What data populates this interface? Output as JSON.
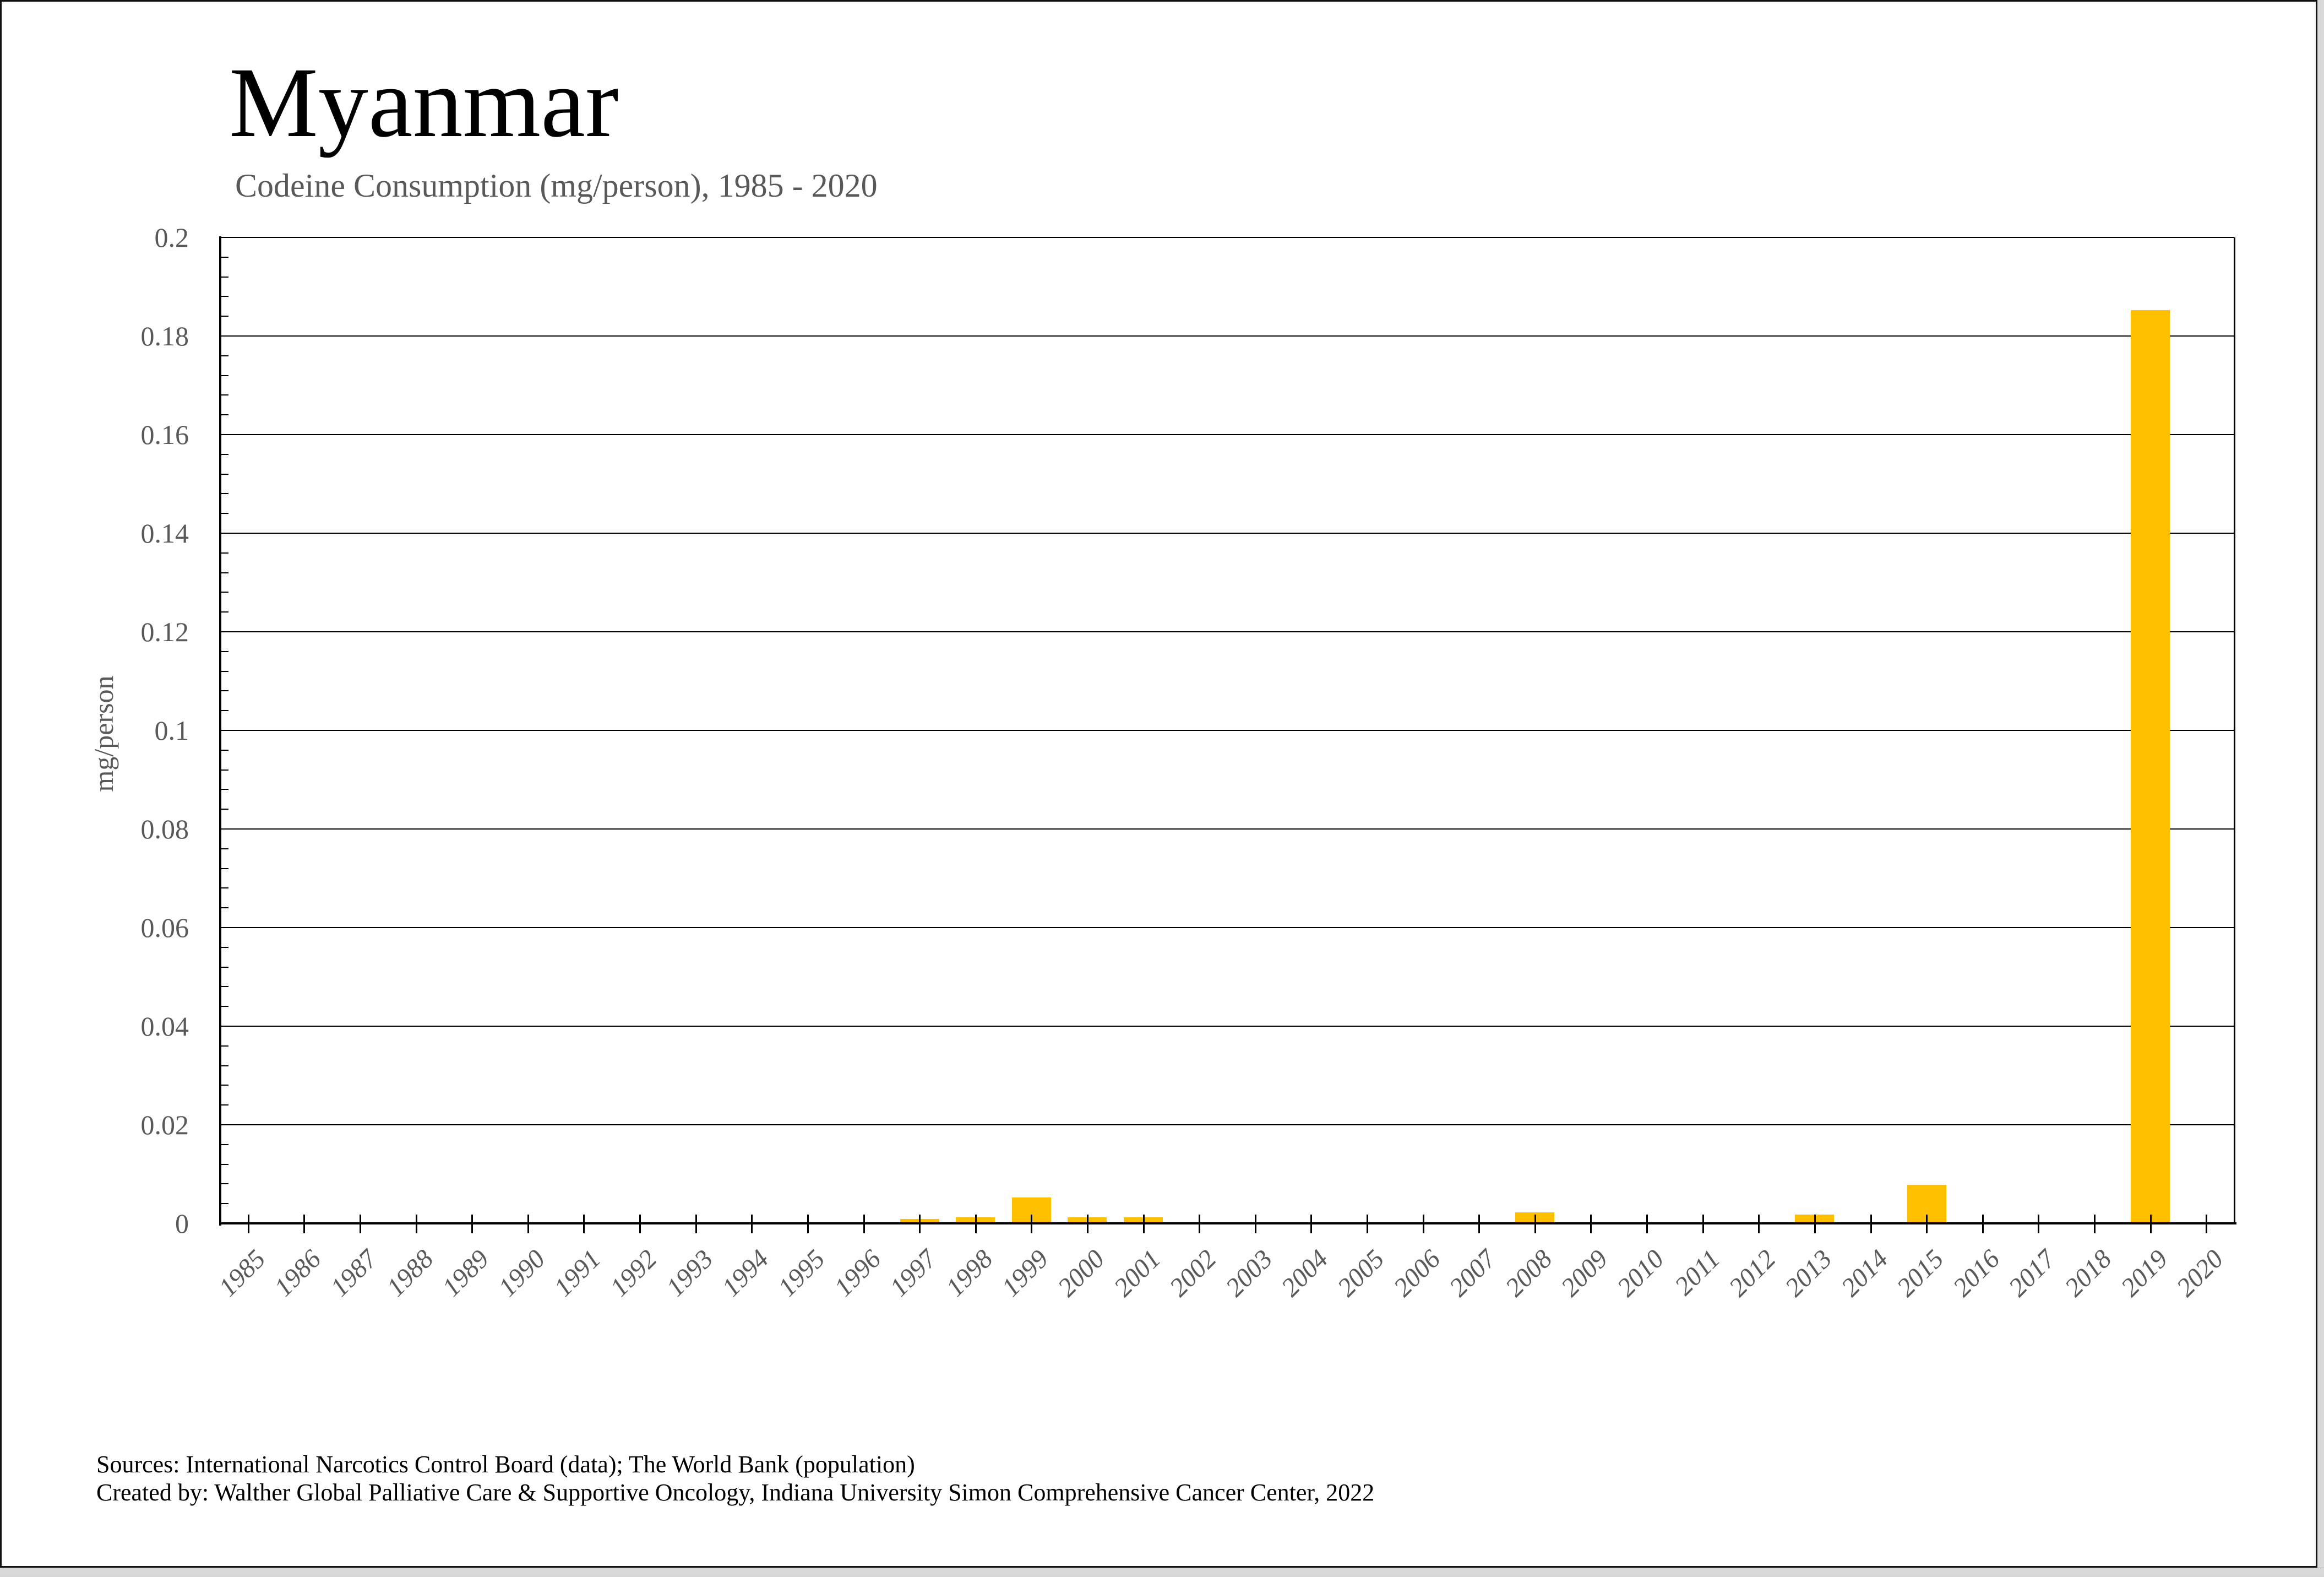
{
  "page": {
    "title": "Myanmar",
    "subtitle": "Codeine Consumption (mg/person), 1985 - 2020",
    "footer_line1": "Sources: International Narcotics Control Board (data); The World Bank (population)",
    "footer_line2": "Created by: Walther Global Palliative Care & Supportive Oncology, Indiana University Simon Comprehensive Cancer Center, 2022"
  },
  "colors": {
    "bar": "#FFC000",
    "axis": "#000000",
    "gridline": "#000000",
    "label_gray": "#595959",
    "title_black": "#000000",
    "page_background": "#ffffff",
    "window_edge_gray": "#d9d9d9"
  },
  "chart_data": {
    "type": "bar",
    "title": "Myanmar",
    "subtitle": "Codeine Consumption (mg/person), 1985 - 2020",
    "xlabel": "",
    "ylabel": "mg/person",
    "ylim": [
      0,
      0.2
    ],
    "y_major_step": 0.02,
    "y_minor_step": 0.004,
    "grid": "horizontal-major",
    "legend": "none",
    "bar_color": "#FFC000",
    "categories": [
      "1985",
      "1986",
      "1987",
      "1988",
      "1989",
      "1990",
      "1991",
      "1992",
      "1993",
      "1994",
      "1995",
      "1996",
      "1997",
      "1998",
      "1999",
      "2000",
      "2001",
      "2002",
      "2003",
      "2004",
      "2005",
      "2006",
      "2007",
      "2008",
      "2009",
      "2010",
      "2011",
      "2012",
      "2013",
      "2014",
      "2015",
      "2016",
      "2017",
      "2018",
      "2019",
      "2020"
    ],
    "values": [
      0,
      0,
      0,
      0,
      0,
      0,
      0,
      0,
      0,
      0,
      0,
      0,
      0.0007,
      0.001,
      0.005,
      0.001,
      0.001,
      0,
      0,
      0,
      0,
      0,
      0,
      0.002,
      0,
      0,
      0,
      0,
      0.0016,
      0,
      0.0076,
      0,
      0,
      0,
      0.185,
      0
    ],
    "ytick_labels": [
      "0",
      "0.02",
      "0.04",
      "0.06",
      "0.08",
      "0.1",
      "0.12",
      "0.14",
      "0.16",
      "0.18",
      "0.2"
    ]
  }
}
